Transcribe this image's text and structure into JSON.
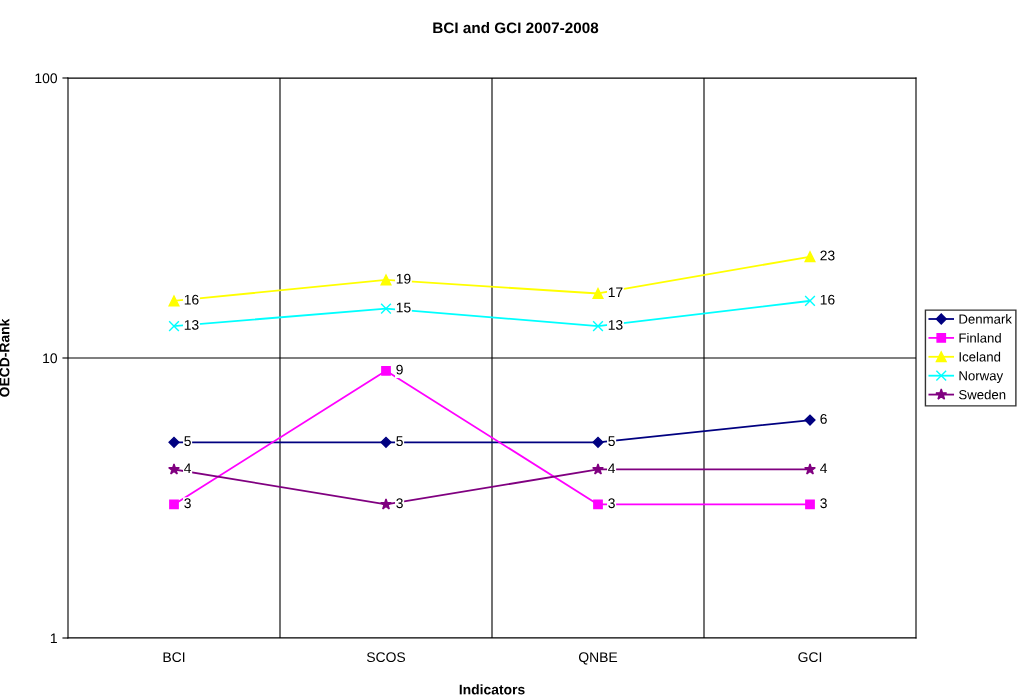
{
  "chart_data": {
    "type": "line",
    "title": "BCI and GCI 2007-2008",
    "xlabel": "Indicators",
    "ylabel": "OECD-Rank",
    "categories": [
      "BCI",
      "SCOS",
      "QNBE",
      "GCI"
    ],
    "series": [
      {
        "name": "Denmark",
        "color": "#000080",
        "marker": "diamond",
        "values": [
          5,
          5,
          5,
          6
        ]
      },
      {
        "name": "Finland",
        "color": "#ff00ff",
        "marker": "square",
        "values": [
          3,
          9,
          3,
          3
        ]
      },
      {
        "name": "Iceland",
        "color": "#ffff00",
        "marker": "triangle",
        "values": [
          16,
          19,
          17,
          23
        ]
      },
      {
        "name": "Norway",
        "color": "#00ffff",
        "marker": "cross",
        "values": [
          13,
          15,
          13,
          16
        ]
      },
      {
        "name": "Sweden",
        "color": "#800080",
        "marker": "star",
        "values": [
          4,
          3,
          4,
          4
        ]
      }
    ],
    "log": true,
    "ylim": [
      1,
      100
    ],
    "yticks": [
      1,
      10,
      100
    ],
    "grid": true,
    "legend": "right",
    "data_labels": true
  }
}
